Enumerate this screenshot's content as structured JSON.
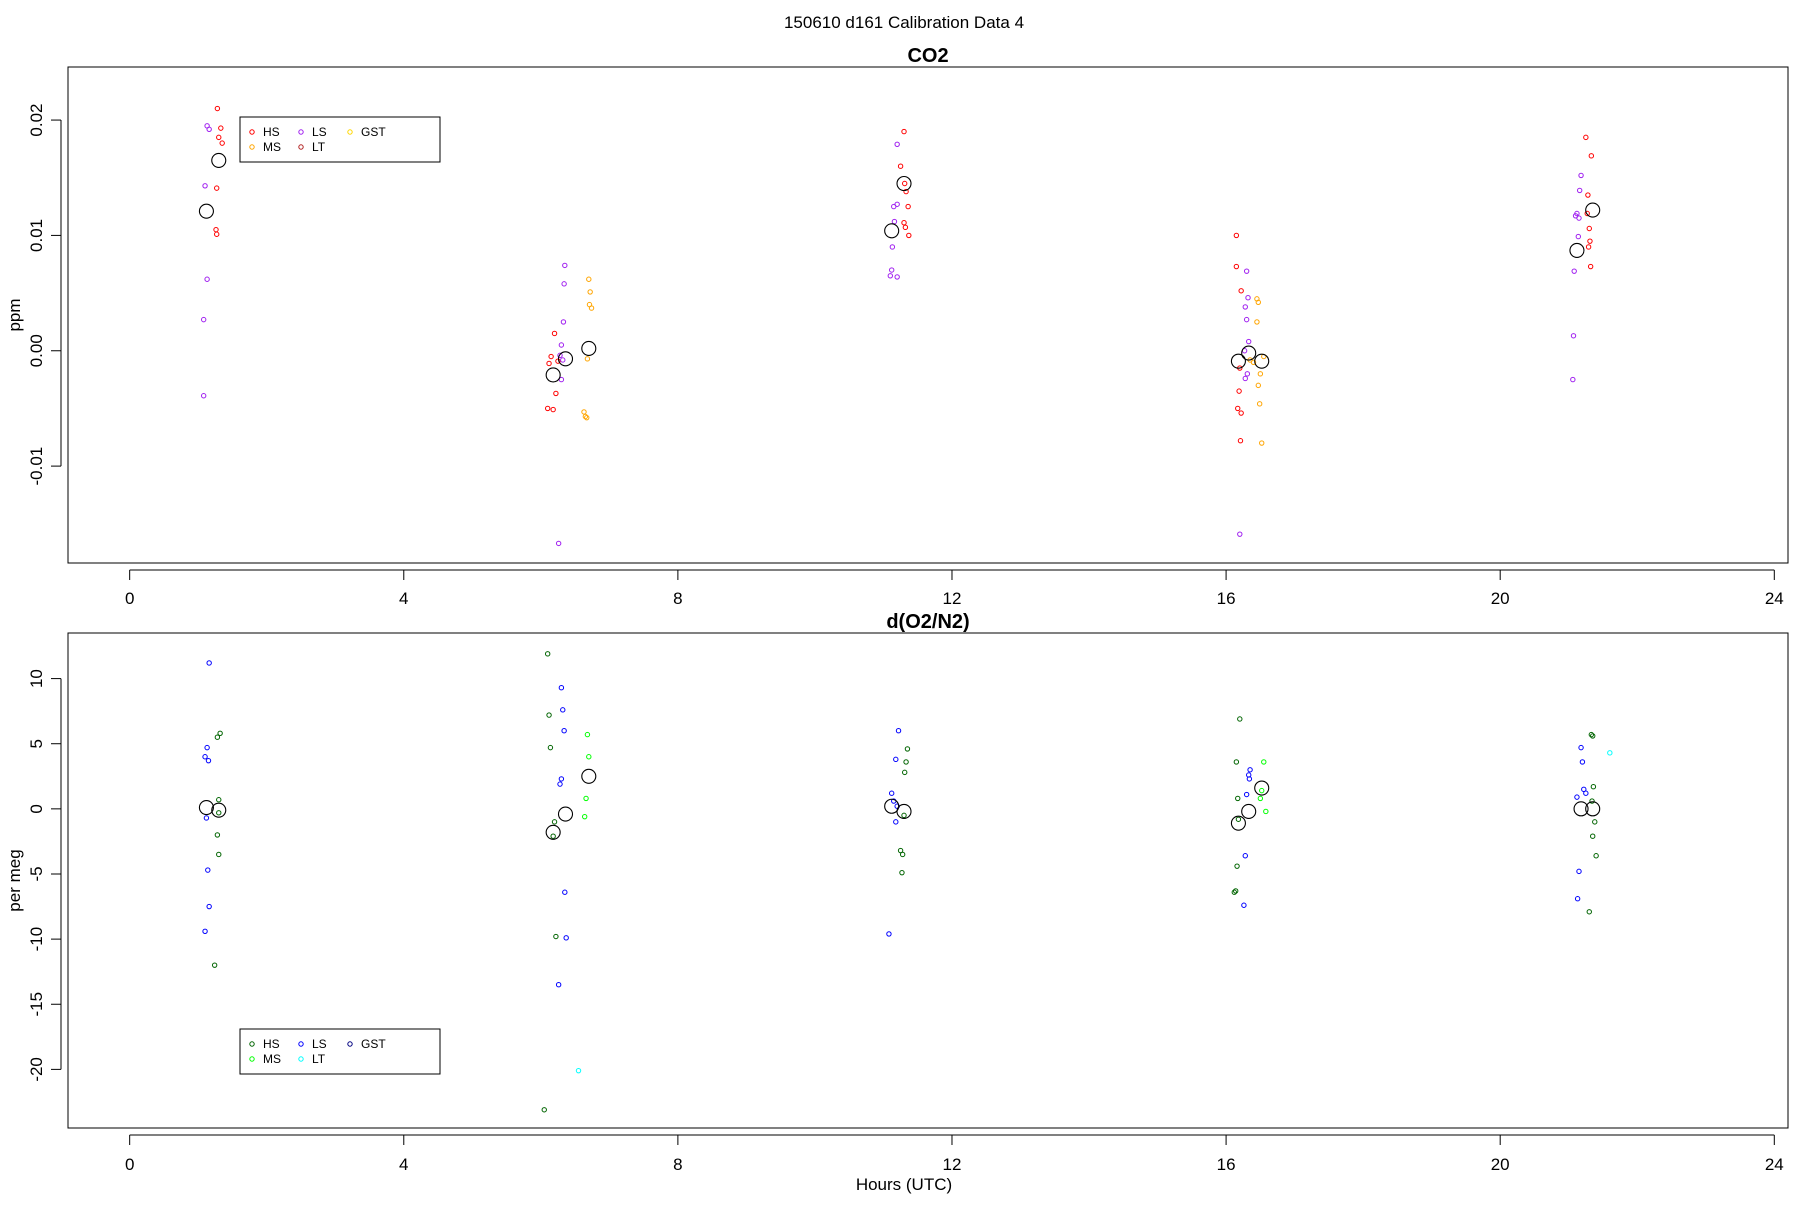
{
  "figure": {
    "title": "150610   d161   Calibration Data 4",
    "xlabel": "Hours (UTC)"
  },
  "chart_data": [
    {
      "type": "scatter",
      "title": "CO2",
      "xlabel": "",
      "ylabel": "ppm",
      "xlim": [
        -0.9,
        24.2
      ],
      "ylim": [
        -0.0184,
        0.0246
      ],
      "x_ticks": [
        0,
        4,
        8,
        12,
        16,
        20,
        24
      ],
      "y_ticks": [
        -0.01,
        0.0,
        0.01,
        0.02
      ],
      "y_tick_labels": [
        "-0.01",
        "0.00",
        "0.01",
        "0.02"
      ],
      "grid": false,
      "legend": {
        "placement": "top-left",
        "entries": [
          {
            "label": "HS",
            "color": "#ff0000"
          },
          {
            "label": "MS",
            "color": "#ffa500"
          },
          {
            "label": "LS",
            "color": "#a020f0"
          },
          {
            "label": "LT",
            "color": "#b22222"
          },
          {
            "label": "GST",
            "color": "#ffd700"
          }
        ]
      },
      "series": [
        {
          "name": "HS",
          "color": "#ff0000",
          "points": [
            [
              1.28,
              0.021
            ],
            [
              1.3,
              0.0185
            ],
            [
              1.33,
              0.0193
            ],
            [
              1.35,
              0.018
            ],
            [
              1.27,
              0.0141
            ],
            [
              1.26,
              0.0105
            ],
            [
              1.27,
              0.0101
            ],
            [
              6.1,
              -0.005
            ],
            [
              6.15,
              -0.0005
            ],
            [
              6.2,
              0.0015
            ],
            [
              6.18,
              -0.0051
            ],
            [
              6.22,
              -0.0037
            ],
            [
              6.25,
              -0.0009
            ],
            [
              6.12,
              -0.0011
            ],
            [
              11.3,
              0.019
            ],
            [
              11.25,
              0.016
            ],
            [
              11.33,
              0.0138
            ],
            [
              11.36,
              0.0125
            ],
            [
              11.3,
              0.0111
            ],
            [
              11.32,
              0.0107
            ],
            [
              11.37,
              0.01
            ],
            [
              11.31,
              0.0145
            ],
            [
              16.15,
              0.01
            ],
            [
              16.15,
              0.0073
            ],
            [
              16.22,
              0.0052
            ],
            [
              16.2,
              -0.0015
            ],
            [
              16.19,
              -0.0035
            ],
            [
              16.17,
              -0.005
            ],
            [
              16.22,
              -0.0054
            ],
            [
              16.21,
              -0.0078
            ],
            [
              21.25,
              0.0185
            ],
            [
              21.33,
              0.0169
            ],
            [
              21.28,
              0.0135
            ],
            [
              21.3,
              0.0106
            ],
            [
              21.31,
              0.0095
            ],
            [
              21.29,
              0.009
            ],
            [
              21.32,
              0.0073
            ],
            [
              21.27,
              0.0119
            ]
          ]
        },
        {
          "name": "MS",
          "color": "#ffa500",
          "points": [
            [
              6.7,
              0.0062
            ],
            [
              6.72,
              0.0051
            ],
            [
              6.71,
              0.004
            ],
            [
              6.74,
              0.0037
            ],
            [
              6.63,
              -0.0053
            ],
            [
              6.65,
              -0.0057
            ],
            [
              6.67,
              -0.0058
            ],
            [
              6.68,
              -0.0007
            ],
            [
              16.35,
              -0.0008
            ],
            [
              16.4,
              -0.001
            ],
            [
              16.45,
              0.0045
            ],
            [
              16.47,
              0.0042
            ],
            [
              16.45,
              0.0025
            ],
            [
              16.5,
              -0.002
            ],
            [
              16.47,
              -0.003
            ],
            [
              16.49,
              -0.0046
            ],
            [
              16.52,
              -0.008
            ],
            [
              16.55,
              -0.0005
            ]
          ]
        },
        {
          "name": "LS",
          "color": "#a020f0",
          "points": [
            [
              1.13,
              0.0195
            ],
            [
              1.16,
              0.0192
            ],
            [
              1.1,
              0.0143
            ],
            [
              1.13,
              0.0062
            ],
            [
              1.08,
              0.0027
            ],
            [
              1.08,
              -0.0039
            ],
            [
              6.35,
              0.0074
            ],
            [
              6.34,
              0.0058
            ],
            [
              6.33,
              0.0025
            ],
            [
              6.3,
              0.0005
            ],
            [
              6.28,
              -0.0004
            ],
            [
              6.3,
              -0.0025
            ],
            [
              6.32,
              -0.0008
            ],
            [
              6.26,
              -0.0167
            ],
            [
              11.2,
              0.0179
            ],
            [
              11.15,
              0.0125
            ],
            [
              11.2,
              0.0127
            ],
            [
              11.16,
              0.0112
            ],
            [
              11.13,
              0.009
            ],
            [
              11.12,
              0.007
            ],
            [
              11.1,
              0.0065
            ],
            [
              11.2,
              0.0064
            ],
            [
              16.3,
              0.0069
            ],
            [
              16.32,
              0.0046
            ],
            [
              16.28,
              0.0038
            ],
            [
              16.3,
              0.0027
            ],
            [
              16.33,
              0.0008
            ],
            [
              16.27,
              0.0
            ],
            [
              16.31,
              -0.002
            ],
            [
              16.28,
              -0.0024
            ],
            [
              16.2,
              -0.0159
            ],
            [
              21.18,
              0.0152
            ],
            [
              21.16,
              0.0139
            ],
            [
              21.12,
              0.0119
            ],
            [
              21.15,
              0.0115
            ],
            [
              21.1,
              0.0117
            ],
            [
              21.14,
              0.0099
            ],
            [
              21.08,
              0.0069
            ],
            [
              21.07,
              0.0013
            ],
            [
              21.06,
              -0.0025
            ]
          ]
        },
        {
          "name": "means",
          "color": "#000000",
          "marker": "large-circle",
          "points": [
            [
              1.12,
              0.0121
            ],
            [
              1.3,
              0.0165
            ],
            [
              6.18,
              -0.0021
            ],
            [
              6.36,
              -0.0007
            ],
            [
              6.7,
              0.0002
            ],
            [
              11.12,
              0.0104
            ],
            [
              11.3,
              0.0145
            ],
            [
              16.18,
              -0.0009
            ],
            [
              16.33,
              -0.0002
            ],
            [
              16.52,
              -0.0009
            ],
            [
              21.12,
              0.0087
            ],
            [
              21.35,
              0.0122
            ]
          ]
        }
      ]
    },
    {
      "type": "scatter",
      "title": "d(O2/N2)",
      "xlabel": "Hours (UTC)",
      "ylabel": "per meg",
      "xlim": [
        -0.9,
        24.2
      ],
      "ylim": [
        -24.5,
        13.5
      ],
      "x_ticks": [
        0,
        4,
        8,
        12,
        16,
        20,
        24
      ],
      "y_ticks": [
        -20,
        -15,
        -10,
        -5,
        0,
        5,
        10
      ],
      "y_tick_labels": [
        "-20",
        "-15",
        "-10",
        "-5",
        "0",
        "5",
        "10"
      ],
      "grid": false,
      "legend": {
        "placement": "bottom-left",
        "entries": [
          {
            "label": "HS",
            "color": "#006400"
          },
          {
            "label": "MS",
            "color": "#00ff00"
          },
          {
            "label": "LS",
            "color": "#0000ff"
          },
          {
            "label": "LT",
            "color": "#00ffff"
          },
          {
            "label": "GST",
            "color": "#000080"
          }
        ]
      },
      "series": [
        {
          "name": "HS",
          "color": "#006400",
          "points": [
            [
              1.32,
              5.8
            ],
            [
              1.28,
              5.5
            ],
            [
              1.3,
              0.7
            ],
            [
              1.3,
              -0.3
            ],
            [
              1.28,
              -2.0
            ],
            [
              1.3,
              -3.5
            ],
            [
              1.24,
              -12.0
            ],
            [
              6.1,
              11.9
            ],
            [
              6.12,
              7.2
            ],
            [
              6.14,
              4.7
            ],
            [
              6.2,
              -1.0
            ],
            [
              6.18,
              -2.1
            ],
            [
              6.22,
              -9.8
            ],
            [
              6.05,
              -23.1
            ],
            [
              11.35,
              4.6
            ],
            [
              11.33,
              3.6
            ],
            [
              11.31,
              2.8
            ],
            [
              11.3,
              -0.5
            ],
            [
              11.25,
              -3.2
            ],
            [
              11.28,
              -3.5
            ],
            [
              11.27,
              -4.9
            ],
            [
              16.2,
              6.9
            ],
            [
              16.15,
              3.6
            ],
            [
              16.17,
              0.8
            ],
            [
              16.18,
              -0.8
            ],
            [
              16.16,
              -4.4
            ],
            [
              16.12,
              -6.4
            ],
            [
              16.14,
              -6.3
            ],
            [
              21.33,
              5.7
            ],
            [
              21.35,
              5.6
            ],
            [
              21.36,
              1.7
            ],
            [
              21.34,
              0.6
            ],
            [
              21.38,
              -1.0
            ],
            [
              21.35,
              -2.1
            ],
            [
              21.4,
              -3.6
            ],
            [
              21.3,
              -7.9
            ]
          ]
        },
        {
          "name": "MS",
          "color": "#00ff00",
          "points": [
            [
              6.68,
              5.7
            ],
            [
              6.7,
              4.0
            ],
            [
              6.66,
              0.8
            ],
            [
              6.64,
              -0.6
            ],
            [
              16.55,
              3.6
            ],
            [
              16.5,
              0.8
            ],
            [
              16.52,
              1.4
            ],
            [
              16.58,
              -0.2
            ]
          ]
        },
        {
          "name": "LS",
          "color": "#0000ff",
          "points": [
            [
              1.16,
              11.2
            ],
            [
              1.13,
              4.7
            ],
            [
              1.1,
              4.0
            ],
            [
              1.15,
              3.7
            ],
            [
              1.12,
              -0.7
            ],
            [
              1.14,
              -4.7
            ],
            [
              1.16,
              -7.5
            ],
            [
              1.1,
              -9.4
            ],
            [
              6.3,
              9.3
            ],
            [
              6.32,
              7.6
            ],
            [
              6.34,
              6.0
            ],
            [
              6.3,
              2.3
            ],
            [
              6.28,
              1.9
            ],
            [
              6.35,
              -6.4
            ],
            [
              6.37,
              -9.9
            ],
            [
              6.26,
              -13.5
            ],
            [
              11.22,
              6.0
            ],
            [
              11.18,
              3.8
            ],
            [
              11.12,
              1.2
            ],
            [
              11.15,
              0.6
            ],
            [
              11.18,
              -1.0
            ],
            [
              11.2,
              0.2
            ],
            [
              11.08,
              -9.6
            ],
            [
              16.35,
              3.0
            ],
            [
              16.33,
              2.6
            ],
            [
              16.3,
              1.1
            ],
            [
              16.34,
              2.3
            ],
            [
              16.28,
              -3.6
            ],
            [
              16.26,
              -7.4
            ],
            [
              21.18,
              4.7
            ],
            [
              21.2,
              3.6
            ],
            [
              21.22,
              1.5
            ],
            [
              21.25,
              1.2
            ],
            [
              21.12,
              0.9
            ],
            [
              21.15,
              -4.8
            ],
            [
              21.13,
              -6.9
            ]
          ]
        },
        {
          "name": "LT",
          "color": "#00ffff",
          "points": [
            [
              6.55,
              -20.1
            ],
            [
              21.6,
              4.3
            ]
          ]
        },
        {
          "name": "means",
          "color": "#000000",
          "marker": "large-circle",
          "points": [
            [
              1.12,
              0.1
            ],
            [
              1.3,
              -0.1
            ],
            [
              6.18,
              -1.8
            ],
            [
              6.36,
              -0.4
            ],
            [
              6.7,
              2.5
            ],
            [
              11.12,
              0.2
            ],
            [
              11.3,
              -0.2
            ],
            [
              16.18,
              -1.1
            ],
            [
              16.33,
              -0.2
            ],
            [
              16.52,
              1.6
            ],
            [
              21.18,
              0.0
            ],
            [
              21.35,
              0.0
            ]
          ]
        }
      ]
    }
  ]
}
